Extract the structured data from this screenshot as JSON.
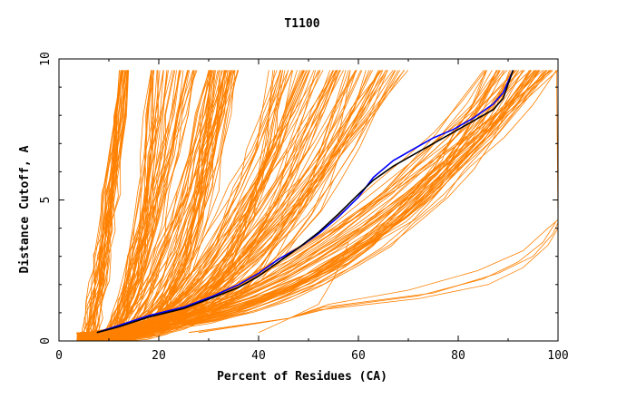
{
  "chart_data": {
    "type": "line",
    "title": "T1100",
    "xlabel": "Percent of Residues (CA)",
    "ylabel": "Distance Cutoff, A",
    "xlim": [
      0,
      100
    ],
    "ylim": [
      0,
      10
    ],
    "x_ticks": [
      "0",
      "20",
      "40",
      "60",
      "80",
      "100"
    ],
    "y_ticks": [
      "0",
      "5",
      "10"
    ],
    "grid": false,
    "legend": "none",
    "colors": {
      "models": "#ff8000",
      "highlight_a": "#0000ff",
      "highlight_b": "#000000"
    },
    "background_groups": [
      {
        "name": "",
        "count": 30,
        "start": [
          [
            3.5,
            0.3
          ],
          [
            5.0,
            0.3
          ]
        ],
        "mid": [
          [
            5.5,
            1.2
          ],
          [
            9.0,
            1.5
          ]
        ],
        "end": [
          [
            12.0,
            9.6
          ],
          [
            14.0,
            9.6
          ]
        ]
      },
      {
        "name": "",
        "count": 40,
        "start": [
          [
            4.0,
            0.3
          ],
          [
            6.0,
            0.3
          ]
        ],
        "mid": [
          [
            12.0,
            1.4
          ],
          [
            16.0,
            1.6
          ]
        ],
        "end": [
          [
            18.0,
            9.6
          ],
          [
            28.0,
            9.6
          ]
        ]
      },
      {
        "name": "",
        "count": 45,
        "start": [
          [
            4.0,
            0.3
          ],
          [
            7.0,
            0.3
          ]
        ],
        "mid": [
          [
            16.0,
            1.5
          ],
          [
            24.0,
            1.8
          ]
        ],
        "end": [
          [
            30.0,
            9.6
          ],
          [
            36.0,
            9.6
          ]
        ]
      },
      {
        "name": "",
        "count": 40,
        "start": [
          [
            4.0,
            0.3
          ],
          [
            7.0,
            0.3
          ]
        ],
        "mid": [
          [
            22.0,
            1.6
          ],
          [
            32.0,
            2.2
          ]
        ],
        "end": [
          [
            42.0,
            9.6
          ],
          [
            57.0,
            9.6
          ]
        ]
      },
      {
        "name": "",
        "count": 40,
        "start": [
          [
            5.0,
            0.3
          ],
          [
            8.0,
            0.3
          ]
        ],
        "mid": [
          [
            30.0,
            1.8
          ],
          [
            40.0,
            2.6
          ]
        ],
        "end": [
          [
            55.0,
            9.6
          ],
          [
            70.0,
            9.6
          ]
        ]
      },
      {
        "name": "",
        "count": 55,
        "start": [
          [
            5.0,
            0.3
          ],
          [
            8.0,
            0.3
          ]
        ],
        "mid": [
          [
            45.0,
            2.4
          ],
          [
            60.0,
            3.2
          ]
        ],
        "end": [
          [
            85.0,
            9.6
          ],
          [
            100.0,
            9.6
          ]
        ]
      }
    ],
    "lower_cluster": [
      {
        "name": "",
        "points": [
          [
            26,
            0.3
          ],
          [
            46,
            0.8
          ],
          [
            55,
            1.2
          ],
          [
            72,
            1.6
          ],
          [
            85,
            2.2
          ],
          [
            92,
            2.8
          ],
          [
            97,
            3.5
          ],
          [
            99.5,
            4.2
          ]
        ]
      },
      {
        "name": "",
        "points": [
          [
            26,
            0.3
          ],
          [
            46,
            0.8
          ],
          [
            54,
            1.3
          ],
          [
            70,
            1.8
          ],
          [
            84,
            2.5
          ],
          [
            93,
            3.2
          ],
          [
            98,
            4.0
          ],
          [
            100,
            4.3
          ]
        ]
      },
      {
        "name": "",
        "points": [
          [
            28,
            0.3
          ],
          [
            46,
            0.8
          ],
          [
            53,
            1.2
          ],
          [
            75,
            1.7
          ],
          [
            88,
            2.4
          ],
          [
            95,
            3.0
          ],
          [
            99,
            3.8
          ],
          [
            100,
            4.2
          ]
        ]
      },
      {
        "name": "",
        "points": [
          [
            28,
            0.3
          ],
          [
            46,
            0.8
          ],
          [
            52,
            1.1
          ],
          [
            72,
            1.5
          ],
          [
            86,
            2.0
          ],
          [
            93,
            2.6
          ],
          [
            98,
            3.4
          ],
          [
            100,
            4.0
          ]
        ]
      }
    ],
    "right_edge": {
      "name": "",
      "points": [
        [
          100,
          0.3
        ],
        [
          100,
          4.2
        ],
        [
          99.7,
          9.6
        ]
      ]
    },
    "spike": {
      "name": "",
      "points": [
        [
          40,
          0.3
        ],
        [
          45,
          0.7
        ],
        [
          52,
          1.3
        ],
        [
          55,
          2.2
        ],
        [
          57,
          3.0
        ],
        [
          58,
          3.5
        ]
      ]
    },
    "highlight_series": [
      {
        "name": "",
        "color": "#0000ff",
        "points": [
          [
            7.6,
            0.3
          ],
          [
            12,
            0.55
          ],
          [
            18,
            0.9
          ],
          [
            25,
            1.2
          ],
          [
            31,
            1.6
          ],
          [
            36,
            2.0
          ],
          [
            40,
            2.4
          ],
          [
            44,
            2.9
          ],
          [
            48,
            3.3
          ],
          [
            52,
            3.8
          ],
          [
            56,
            4.4
          ],
          [
            60,
            5.1
          ],
          [
            63,
            5.8
          ],
          [
            67,
            6.4
          ],
          [
            71,
            6.8
          ],
          [
            75,
            7.2
          ],
          [
            79,
            7.5
          ],
          [
            83,
            7.9
          ],
          [
            87,
            8.4
          ],
          [
            89,
            8.8
          ],
          [
            91,
            9.6
          ]
        ]
      },
      {
        "name": "",
        "color": "#000000",
        "points": [
          [
            7.6,
            0.3
          ],
          [
            12,
            0.5
          ],
          [
            18,
            0.85
          ],
          [
            25,
            1.15
          ],
          [
            31,
            1.55
          ],
          [
            36,
            1.9
          ],
          [
            40,
            2.3
          ],
          [
            44,
            2.8
          ],
          [
            48,
            3.3
          ],
          [
            52,
            3.85
          ],
          [
            56,
            4.5
          ],
          [
            60,
            5.2
          ],
          [
            63,
            5.7
          ],
          [
            67,
            6.2
          ],
          [
            71,
            6.6
          ],
          [
            75,
            7.0
          ],
          [
            79,
            7.4
          ],
          [
            83,
            7.8
          ],
          [
            87,
            8.2
          ],
          [
            89,
            8.6
          ],
          [
            91,
            9.6
          ]
        ]
      }
    ]
  }
}
